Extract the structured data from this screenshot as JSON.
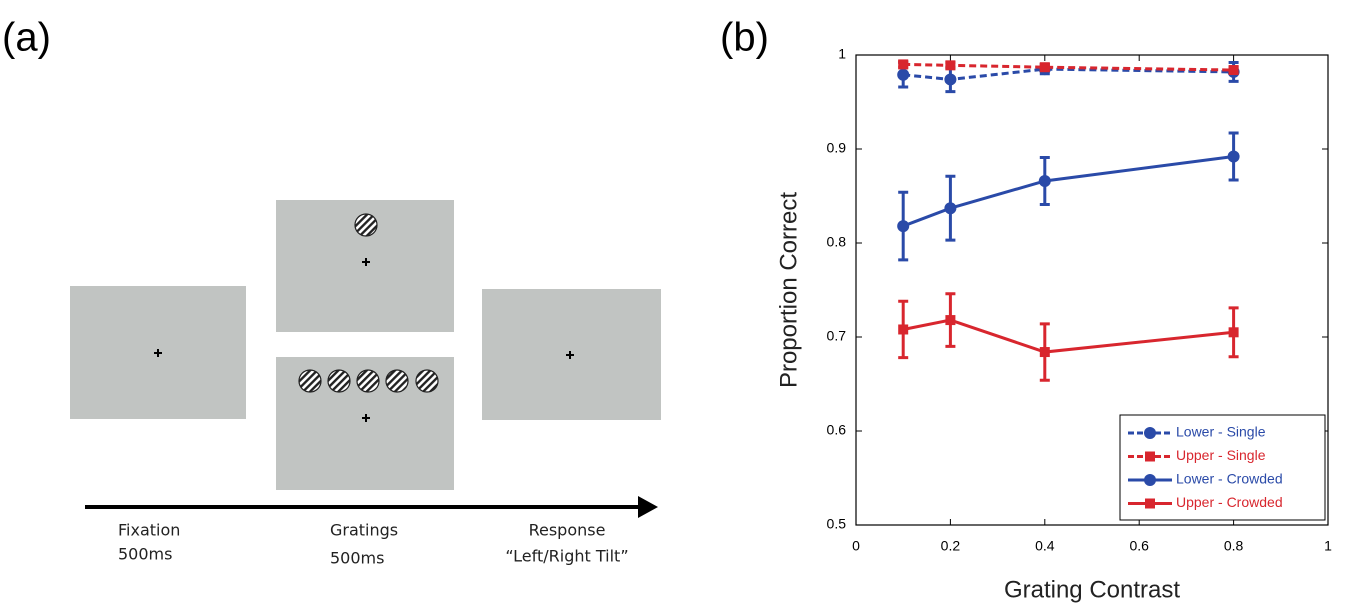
{
  "panels": [
    "(a)",
    "(b)"
  ],
  "diagram": {
    "steps": [
      {
        "label": "Fixation",
        "duration": "500ms"
      },
      {
        "label": "Gratings",
        "duration": "500ms"
      },
      {
        "label": "Response",
        "duration": "“Left/Right Tilt”"
      }
    ]
  },
  "chart_data": {
    "type": "line",
    "x_label": "Grating Contrast",
    "y_label": "Proportion Correct",
    "x": [
      0.1,
      0.2,
      0.4,
      0.8
    ],
    "series": [
      {
        "name": "Lower - Single",
        "color": "#2a4aa8",
        "linestyle": "dashed",
        "marker": "circle",
        "values": [
          0.979,
          0.974,
          0.985,
          0.982
        ],
        "errors": [
          0.013,
          0.013,
          0.005,
          0.01
        ]
      },
      {
        "name": "Upper - Single",
        "color": "#d8262e",
        "linestyle": "dashed",
        "marker": "square",
        "values": [
          0.99,
          0.989,
          0.987,
          0.984
        ],
        "errors": [
          0.003,
          0.003,
          0.003,
          0.003
        ]
      },
      {
        "name": "Lower - Crowded",
        "color": "#2a4aa8",
        "linestyle": "solid",
        "marker": "circle",
        "values": [
          0.818,
          0.837,
          0.866,
          0.892
        ],
        "errors": [
          0.036,
          0.034,
          0.025,
          0.025
        ]
      },
      {
        "name": "Upper - Crowded",
        "color": "#d8262e",
        "linestyle": "solid",
        "marker": "square",
        "values": [
          0.708,
          0.718,
          0.684,
          0.705
        ],
        "errors": [
          0.03,
          0.028,
          0.03,
          0.026
        ]
      }
    ],
    "xlim": [
      0,
      1
    ],
    "xticks": [
      0,
      0.2,
      0.4,
      0.6,
      0.8,
      1
    ],
    "ylim": [
      0.5,
      1
    ],
    "yticks": [
      0.5,
      0.6,
      0.7,
      0.8,
      0.9,
      1
    ],
    "grid": false,
    "legend": "lower right"
  }
}
